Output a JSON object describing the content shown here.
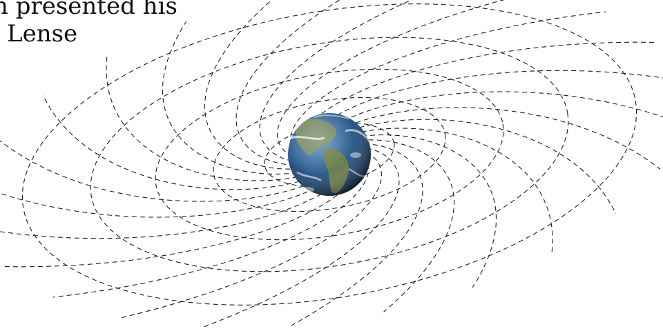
{
  "caption": {
    "line1": "n presented his",
    "line2": "Lense"
  },
  "diagram": {
    "central_body": "earth-globe",
    "grid_style": "dashed",
    "colors": {
      "ocean": "#2d5e8e",
      "land": "#7a8a5a",
      "grid": "#1a1a1a"
    }
  }
}
